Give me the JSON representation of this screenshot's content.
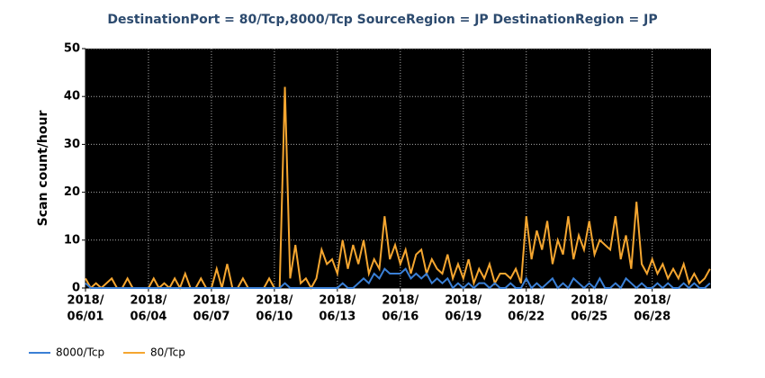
{
  "chart_data": {
    "type": "line",
    "title": "DestinationPort = 80/Tcp,8000/Tcp SourceRegion = JP DestinationRegion = JP",
    "y_label": "Scan count/hour",
    "xlim": [
      0,
      29.8
    ],
    "ylim": [
      0,
      50
    ],
    "yticks": [
      0,
      10,
      20,
      30,
      40,
      50
    ],
    "xticks": [
      {
        "value": 0,
        "label": [
          "2018/",
          "06/01"
        ]
      },
      {
        "value": 3,
        "label": [
          "2018/",
          "06/04"
        ]
      },
      {
        "value": 6,
        "label": [
          "2018/",
          "06/07"
        ]
      },
      {
        "value": 9,
        "label": [
          "2018/",
          "06/10"
        ]
      },
      {
        "value": 12,
        "label": [
          "2018/",
          "06/13"
        ]
      },
      {
        "value": 15,
        "label": [
          "2018/",
          "06/16"
        ]
      },
      {
        "value": 18,
        "label": [
          "2018/",
          "06/19"
        ]
      },
      {
        "value": 21,
        "label": [
          "2018/",
          "06/22"
        ]
      },
      {
        "value": 24,
        "label": [
          "2018/",
          "06/25"
        ]
      },
      {
        "value": 27,
        "label": [
          "2018/",
          "06/28"
        ]
      }
    ],
    "grid": true,
    "x": [
      0,
      0.25,
      0.5,
      0.75,
      1,
      1.25,
      1.5,
      1.75,
      2,
      2.25,
      2.5,
      2.75,
      3,
      3.25,
      3.5,
      3.75,
      4,
      4.25,
      4.5,
      4.75,
      5,
      5.25,
      5.5,
      5.75,
      6,
      6.25,
      6.5,
      6.75,
      7,
      7.25,
      7.5,
      7.75,
      8,
      8.25,
      8.5,
      8.75,
      9,
      9.25,
      9.5,
      9.75,
      10,
      10.25,
      10.5,
      10.75,
      11,
      11.25,
      11.5,
      11.75,
      12,
      12.25,
      12.5,
      12.75,
      13,
      13.25,
      13.5,
      13.75,
      14,
      14.25,
      14.5,
      14.75,
      15,
      15.25,
      15.5,
      15.75,
      16,
      16.25,
      16.5,
      16.75,
      17,
      17.25,
      17.5,
      17.75,
      18,
      18.25,
      18.5,
      18.75,
      19,
      19.25,
      19.5,
      19.75,
      20,
      20.25,
      20.5,
      20.75,
      21,
      21.25,
      21.5,
      21.75,
      22,
      22.25,
      22.5,
      22.75,
      23,
      23.25,
      23.5,
      23.75,
      24,
      24.25,
      24.5,
      24.75,
      25,
      25.25,
      25.5,
      25.75,
      26,
      26.25,
      26.5,
      26.75,
      27,
      27.25,
      27.5,
      27.75,
      28,
      28.25,
      28.5,
      28.75,
      29,
      29.25,
      29.5,
      29.75
    ],
    "series": [
      {
        "name": "8000/Tcp",
        "color": "#3a7fd5",
        "values": [
          1,
          0,
          0,
          0,
          0,
          0,
          0,
          0,
          0,
          0,
          0,
          0,
          0,
          0,
          0,
          0,
          0,
          0,
          0,
          0,
          0,
          0,
          0,
          0,
          0,
          0,
          0,
          0,
          0,
          0,
          0,
          0,
          0,
          0,
          0,
          0,
          0,
          0,
          1,
          0,
          0,
          0,
          0,
          0,
          0,
          0,
          0,
          0,
          0,
          1,
          0,
          0,
          1,
          2,
          1,
          3,
          2,
          4,
          3,
          3,
          3,
          4,
          2,
          3,
          2,
          3,
          1,
          2,
          1,
          2,
          0,
          1,
          0,
          1,
          0,
          1,
          1,
          0,
          1,
          0,
          0,
          1,
          0,
          0,
          2,
          0,
          1,
          0,
          1,
          2,
          0,
          1,
          0,
          2,
          1,
          0,
          1,
          0,
          2,
          0,
          0,
          1,
          0,
          2,
          1,
          0,
          1,
          0,
          0,
          1,
          0,
          1,
          0,
          0,
          1,
          0,
          1,
          0,
          0,
          1
        ]
      },
      {
        "name": "80/Tcp",
        "color": "#f5a630",
        "values": [
          2,
          0,
          1,
          0,
          1,
          2,
          0,
          0,
          2,
          0,
          0,
          0,
          0,
          2,
          0,
          1,
          0,
          2,
          0,
          3,
          0,
          0,
          2,
          0,
          0,
          4,
          0,
          5,
          0,
          0,
          2,
          0,
          0,
          0,
          0,
          2,
          0,
          0,
          42,
          2,
          9,
          1,
          2,
          0,
          2,
          8,
          5,
          6,
          3,
          10,
          4,
          9,
          5,
          10,
          3,
          6,
          4,
          15,
          6,
          9,
          5,
          8,
          3,
          7,
          8,
          3,
          6,
          4,
          3,
          7,
          2,
          5,
          2,
          6,
          1,
          4,
          2,
          5,
          1,
          3,
          3,
          2,
          4,
          1,
          15,
          6,
          12,
          8,
          14,
          5,
          10,
          7,
          15,
          6,
          11,
          8,
          14,
          7,
          10,
          9,
          8,
          15,
          6,
          11,
          4,
          18,
          5,
          3,
          6,
          3,
          5,
          2,
          4,
          2,
          5,
          1,
          3,
          1,
          2,
          4
        ]
      }
    ]
  }
}
